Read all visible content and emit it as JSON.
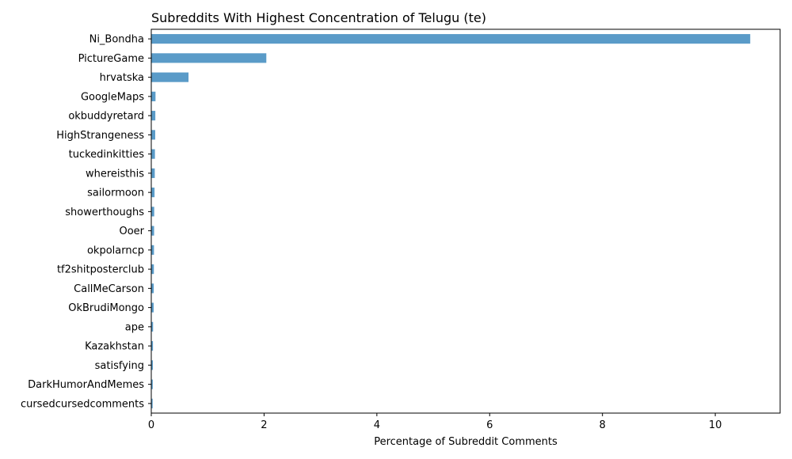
{
  "chart_data": {
    "type": "bar",
    "orientation": "horizontal",
    "title": "Subreddits With Highest Concentration of Telugu (te)",
    "xlabel": "Percentage of Subreddit Comments",
    "ylabel": "",
    "xlim": [
      0,
      11.15
    ],
    "xticks": [
      0,
      2,
      4,
      6,
      8,
      10
    ],
    "bar_color": "#5a9bc8",
    "grid": false,
    "categories": [
      "Ni_Bondha",
      "PictureGame",
      "hrvatska",
      "GoogleMaps",
      "okbuddyretard",
      "HighStrangeness",
      "tuckedinkitties",
      "whereisthis",
      "sailormoon",
      "showerthoughs",
      "Ooer",
      "okpolarncp",
      "tf2shitposterclub",
      "CallMeCarson",
      "OkBrudiMongo",
      "ape",
      "Kazakhstan",
      "satisfying",
      "DarkHumorAndMemes",
      "cursedcursedcomments"
    ],
    "values": [
      10.62,
      2.04,
      0.66,
      0.075,
      0.072,
      0.07,
      0.065,
      0.062,
      0.058,
      0.052,
      0.05,
      0.048,
      0.046,
      0.044,
      0.042,
      0.032,
      0.03,
      0.028,
      0.026,
      0.024
    ]
  }
}
